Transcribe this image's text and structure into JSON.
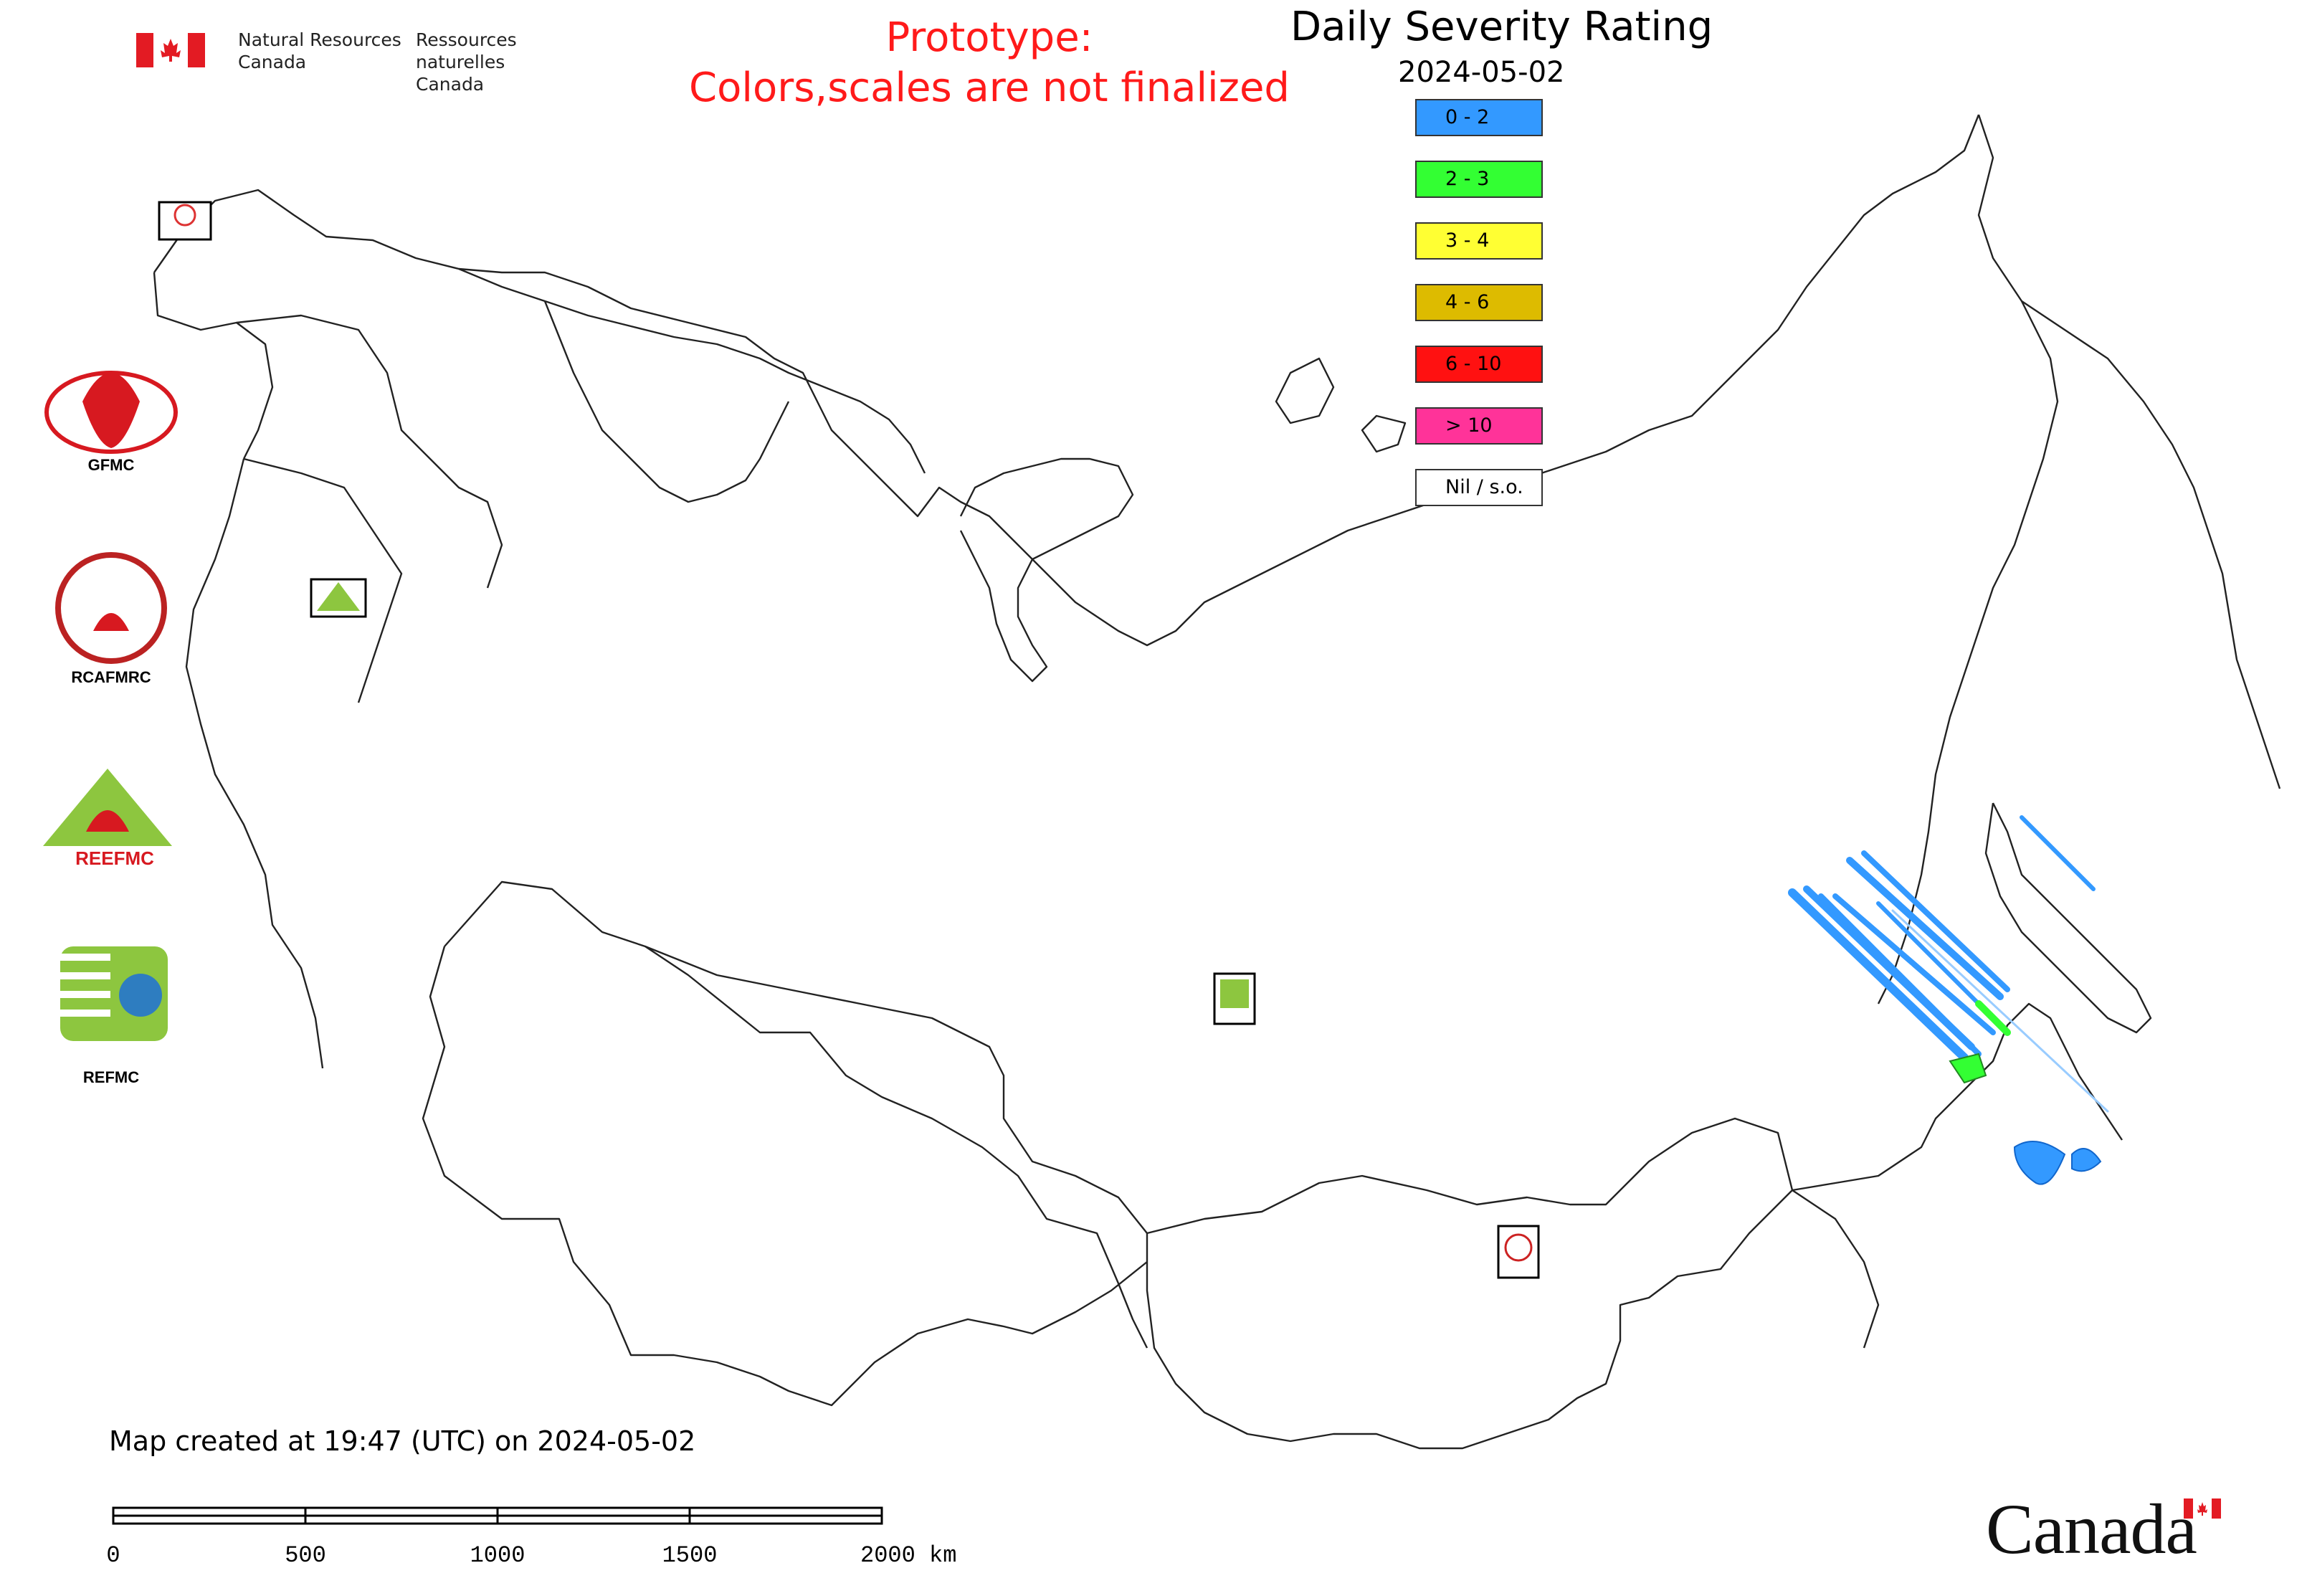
{
  "header": {
    "department_en_line1": "Natural Resources",
    "department_en_line2": "Canada",
    "department_fr_line1": "Ressources naturelles",
    "department_fr_line2": "Canada"
  },
  "prototype_notice": {
    "line1": "Prototype:",
    "line2": "Colors,scales are not finalized"
  },
  "legend": {
    "title": "Daily Severity Rating",
    "date": "2024-05-02",
    "items": [
      {
        "label": "0 - 2",
        "color": "#3399ff"
      },
      {
        "label": "2 - 3",
        "color": "#33ff33"
      },
      {
        "label": "3 - 4",
        "color": "#ffff33"
      },
      {
        "label": "4 - 6",
        "color": "#ddbb00"
      },
      {
        "label": "6 - 10",
        "color": "#ff1111"
      },
      {
        "label": "> 10",
        "color": "#ff3399"
      },
      {
        "label": "Nil / s.o.",
        "color": "#ffffff"
      }
    ]
  },
  "partners": {
    "gfmc": "GFMC",
    "rcafmrc": "RCAFMRC",
    "reefmc": "REEFMC",
    "refmc": "REFMC"
  },
  "map_markers": {
    "gfmc": "GFMC",
    "reefmc": "REEFMC",
    "refmc": "REFMC",
    "rcafmrc": "RCAFMRC"
  },
  "footer": {
    "note": "Map created at 19:47 (UTC) on 2024-05-02",
    "scale_labels": [
      "0",
      "500",
      "1000",
      "1500",
      "2000 km"
    ],
    "wordmark": "Canada"
  }
}
